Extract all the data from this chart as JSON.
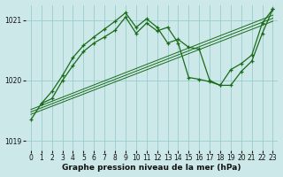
{
  "title": "Graphe pression niveau de la mer (hPa)",
  "bg_color": "#cce8e8",
  "grid_color": "#99cccc",
  "line_color": "#1a6b1a",
  "xlim": [
    -0.5,
    23.5
  ],
  "ylim": [
    1018.85,
    1021.25
  ],
  "yticks": [
    1019,
    1020,
    1021
  ],
  "xticks": [
    0,
    1,
    2,
    3,
    4,
    5,
    6,
    7,
    8,
    9,
    10,
    11,
    12,
    13,
    14,
    15,
    16,
    17,
    18,
    19,
    20,
    21,
    22,
    23
  ],
  "trend1_x": [
    0,
    23
  ],
  "trend1_y": [
    1019.52,
    1021.08
  ],
  "trend2_x": [
    0,
    23
  ],
  "trend2_y": [
    1019.48,
    1021.03
  ],
  "trend3_x": [
    0,
    23
  ],
  "trend3_y": [
    1019.44,
    1020.98
  ],
  "line_main_x": [
    0,
    1,
    2,
    3,
    4,
    5,
    6,
    7,
    8,
    9,
    10,
    11,
    12,
    13,
    14,
    15,
    16,
    17,
    18,
    19,
    20,
    21,
    22,
    23
  ],
  "line_main_y": [
    1019.35,
    1019.62,
    1019.7,
    1020.0,
    1020.25,
    1020.48,
    1020.62,
    1020.72,
    1020.83,
    1021.05,
    1020.78,
    1020.95,
    1020.82,
    1020.88,
    1020.62,
    1020.05,
    1020.02,
    1019.98,
    1019.92,
    1020.18,
    1020.28,
    1020.42,
    1020.95,
    1021.18
  ],
  "line_spike_x": [
    1,
    2,
    3,
    4,
    5,
    6,
    7,
    8,
    9,
    10,
    11,
    12,
    13,
    14,
    15,
    16,
    17,
    18,
    19,
    20,
    21,
    22,
    23
  ],
  "line_spike_y": [
    1019.62,
    1019.82,
    1020.08,
    1020.38,
    1020.58,
    1020.72,
    1020.85,
    1020.98,
    1021.12,
    1020.88,
    1021.02,
    1020.88,
    1020.62,
    1020.68,
    1020.55,
    1020.52,
    1020.0,
    1019.92,
    1019.92,
    1020.15,
    1020.32,
    1020.78,
    1021.18
  ]
}
